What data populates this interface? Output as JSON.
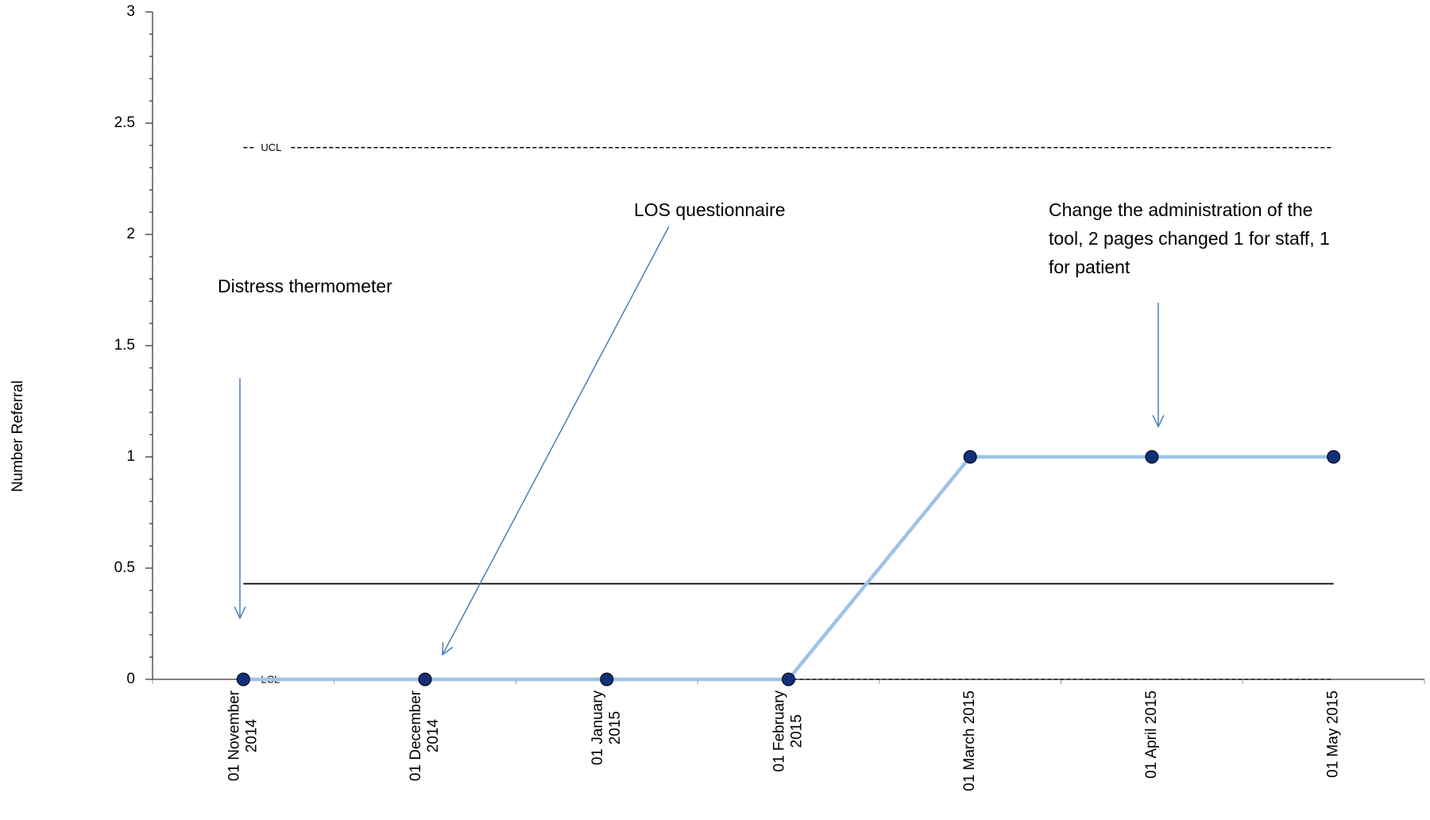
{
  "chart_data": {
    "type": "line",
    "y_label": "Number Referral",
    "categories": [
      "01 November 2014",
      "01 December 2014",
      "01 January 2015",
      "01 February 2015",
      "01 March 2015",
      "01 April 2015",
      "01 May 2015"
    ],
    "series": [
      {
        "color": "#9dc3e6",
        "marker_color": "#10307a",
        "values": [
          0,
          0,
          0,
          0,
          1,
          1,
          1
        ]
      }
    ],
    "ylim": [
      0,
      3
    ],
    "yticks": [
      0,
      0.5,
      1,
      1.5,
      2,
      2.5,
      3
    ],
    "y_minor_step": 0.1,
    "control_lines": [
      {
        "label": "UCL",
        "value": 2.39,
        "style": "dashed"
      },
      {
        "value": 0.43,
        "style": "solid"
      },
      {
        "label": "LCL",
        "value": 0,
        "style": "dashed"
      }
    ],
    "annotations": [
      {
        "lines": [
          "Distress thermometer"
        ]
      },
      {
        "lines": [
          "LOS questionnaire"
        ]
      },
      {
        "lines": [
          "Change the administration of the",
          "tool, 2 pages changed 1 for staff, 1",
          "for patient"
        ]
      }
    ]
  }
}
